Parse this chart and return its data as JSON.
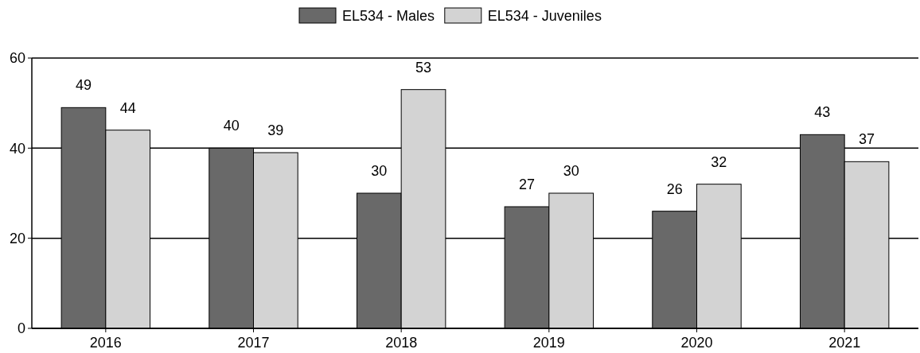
{
  "chart_data": {
    "type": "bar",
    "categories": [
      "2016",
      "2017",
      "2018",
      "2019",
      "2020",
      "2021"
    ],
    "series": [
      {
        "name": "EL534 - Males",
        "color": "#696969",
        "values": [
          49,
          40,
          30,
          27,
          26,
          43
        ]
      },
      {
        "name": "EL534 - Juveniles",
        "color": "#d3d3d3",
        "values": [
          44,
          39,
          53,
          30,
          32,
          37
        ]
      }
    ],
    "ylim": [
      0,
      60
    ],
    "yticks": [
      0,
      20,
      40,
      60
    ],
    "grid": "y",
    "legend": "top",
    "data_labels": true
  }
}
